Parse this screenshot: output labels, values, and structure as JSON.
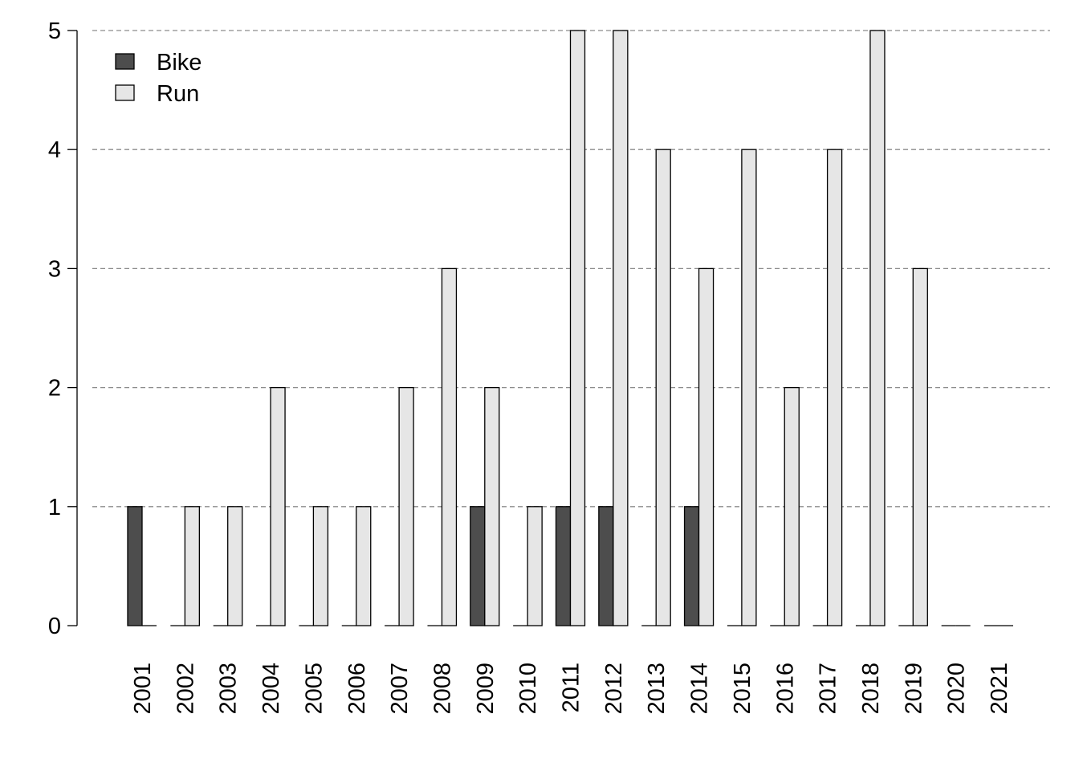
{
  "chart_data": {
    "type": "bar",
    "categories": [
      "2001",
      "2002",
      "2003",
      "2004",
      "2005",
      "2006",
      "2007",
      "2008",
      "2009",
      "2010",
      "2011",
      "2012",
      "2013",
      "2014",
      "2015",
      "2016",
      "2017",
      "2018",
      "2019",
      "2020",
      "2021"
    ],
    "series": [
      {
        "name": "Bike",
        "color": "#4d4d4d",
        "values": [
          1,
          0,
          0,
          0,
          0,
          0,
          0,
          0,
          1,
          0,
          1,
          1,
          0,
          1,
          0,
          0,
          0,
          0,
          0,
          0,
          0
        ]
      },
      {
        "name": "Run",
        "color": "#e6e6e6",
        "values": [
          0,
          1,
          1,
          2,
          1,
          1,
          2,
          3,
          2,
          1,
          5,
          5,
          4,
          3,
          4,
          2,
          4,
          5,
          3,
          0,
          0
        ]
      }
    ],
    "ylim": [
      0,
      5
    ],
    "yticks": [
      0,
      1,
      2,
      3,
      4,
      5
    ],
    "title": "",
    "xlabel": "",
    "ylabel": "",
    "grid": "horizontal dashed",
    "legend_position": "top-left"
  }
}
